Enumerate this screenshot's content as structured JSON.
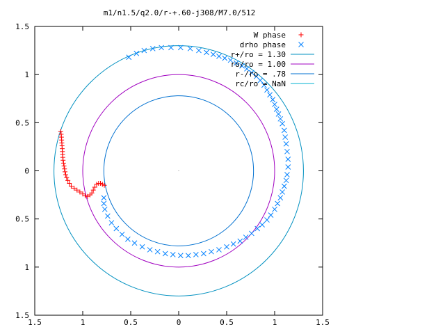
{
  "chart_data": {
    "type": "scatter",
    "title": "m1/n1.5/q2.0/r-+.60-j308/M7.0/512",
    "xlabel": "",
    "ylabel": "",
    "xlim": [
      -1.5,
      1.5
    ],
    "ylim": [
      -1.5,
      1.5
    ],
    "x_ticks": [
      "1.5",
      "1",
      "0.5",
      "0",
      "0.5",
      "1",
      "1.5"
    ],
    "y_ticks": [
      "1.5",
      "1",
      "0.5",
      "0",
      "0.5",
      "1",
      "1.5"
    ],
    "grid": false,
    "legend_position": "top-right",
    "center_mark": [
      0,
      0
    ],
    "series": [
      {
        "name": "W phase",
        "kind": "points",
        "marker": "+",
        "color": "#ff0000",
        "points": [
          [
            -1.23,
            0.41
          ],
          [
            -1.225,
            0.38
          ],
          [
            -1.222,
            0.35
          ],
          [
            -1.22,
            0.32
          ],
          [
            -1.218,
            0.29
          ],
          [
            -1.216,
            0.26
          ],
          [
            -1.214,
            0.23
          ],
          [
            -1.212,
            0.2
          ],
          [
            -1.21,
            0.17
          ],
          [
            -1.208,
            0.14
          ],
          [
            -1.205,
            0.11
          ],
          [
            -1.2,
            0.08
          ],
          [
            -1.195,
            0.05
          ],
          [
            -1.19,
            0.02
          ],
          [
            -1.185,
            -0.01
          ],
          [
            -1.178,
            -0.04
          ],
          [
            -1.168,
            -0.07
          ],
          [
            -1.155,
            -0.1
          ],
          [
            -1.14,
            -0.13
          ],
          [
            -1.12,
            -0.16
          ],
          [
            -1.09,
            -0.18
          ],
          [
            -1.06,
            -0.2
          ],
          [
            -1.03,
            -0.22
          ],
          [
            -1.0,
            -0.24
          ],
          [
            -0.975,
            -0.26
          ],
          [
            -0.95,
            -0.265
          ],
          [
            -0.925,
            -0.25
          ],
          [
            -0.905,
            -0.23
          ],
          [
            -0.89,
            -0.2
          ],
          [
            -0.875,
            -0.17
          ],
          [
            -0.855,
            -0.14
          ],
          [
            -0.835,
            -0.13
          ],
          [
            -0.815,
            -0.13
          ],
          [
            -0.795,
            -0.14
          ],
          [
            -0.775,
            -0.15
          ]
        ]
      },
      {
        "name": "drho phase",
        "kind": "points",
        "marker": "x",
        "color": "#0080ff",
        "points": [
          [
            -0.52,
            1.18
          ],
          [
            -0.44,
            1.22
          ],
          [
            -0.36,
            1.25
          ],
          [
            -0.27,
            1.27
          ],
          [
            -0.18,
            1.28
          ],
          [
            -0.08,
            1.28
          ],
          [
            0.02,
            1.28
          ],
          [
            0.12,
            1.27
          ],
          [
            0.21,
            1.25
          ],
          [
            0.29,
            1.23
          ],
          [
            0.36,
            1.21
          ],
          [
            0.42,
            1.19
          ],
          [
            0.48,
            1.17
          ],
          [
            0.54,
            1.15
          ],
          [
            0.6,
            1.12
          ],
          [
            0.66,
            1.09
          ],
          [
            0.71,
            1.06
          ],
          [
            0.76,
            1.02
          ],
          [
            0.81,
            0.98
          ],
          [
            0.85,
            0.94
          ],
          [
            0.89,
            0.89
          ],
          [
            0.92,
            0.84
          ],
          [
            0.95,
            0.79
          ],
          [
            0.98,
            0.74
          ],
          [
            1.0,
            0.69
          ],
          [
            1.02,
            0.64
          ],
          [
            1.04,
            0.59
          ],
          [
            1.06,
            0.54
          ],
          [
            1.08,
            0.49
          ],
          [
            1.1,
            0.42
          ],
          [
            1.11,
            0.35
          ],
          [
            1.12,
            0.28
          ],
          [
            1.13,
            0.2
          ],
          [
            1.14,
            0.12
          ],
          [
            1.14,
            0.04
          ],
          [
            1.13,
            -0.04
          ],
          [
            1.12,
            -0.1
          ],
          [
            1.1,
            -0.16
          ],
          [
            1.08,
            -0.22
          ],
          [
            1.06,
            -0.28
          ],
          [
            1.03,
            -0.34
          ],
          [
            1.0,
            -0.4
          ],
          [
            0.96,
            -0.46
          ],
          [
            0.92,
            -0.51
          ],
          [
            0.87,
            -0.56
          ],
          [
            0.82,
            -0.6
          ],
          [
            0.76,
            -0.65
          ],
          [
            0.7,
            -0.69
          ],
          [
            0.64,
            -0.73
          ],
          [
            0.57,
            -0.76
          ],
          [
            0.5,
            -0.79
          ],
          [
            0.42,
            -0.82
          ],
          [
            0.34,
            -0.84
          ],
          [
            0.26,
            -0.86
          ],
          [
            0.18,
            -0.87
          ],
          [
            0.1,
            -0.88
          ],
          [
            0.02,
            -0.88
          ],
          [
            -0.06,
            -0.87
          ],
          [
            -0.14,
            -0.86
          ],
          [
            -0.22,
            -0.84
          ],
          [
            -0.3,
            -0.82
          ],
          [
            -0.38,
            -0.79
          ],
          [
            -0.46,
            -0.75
          ],
          [
            -0.53,
            -0.71
          ],
          [
            -0.59,
            -0.66
          ],
          [
            -0.65,
            -0.6
          ],
          [
            -0.7,
            -0.54
          ],
          [
            -0.74,
            -0.47
          ],
          [
            -0.77,
            -0.4
          ],
          [
            -0.78,
            -0.34
          ],
          [
            -0.78,
            -0.28
          ]
        ]
      },
      {
        "name": "r+/ro = 1.30",
        "kind": "circle",
        "radius": 1.3,
        "color": "#0090c0"
      },
      {
        "name": "ro/ro = 1.00",
        "kind": "circle",
        "radius": 1.0,
        "color": "#a000c0"
      },
      {
        "name": "r-/ro = .78",
        "kind": "circle",
        "radius": 0.78,
        "color": "#0070d0"
      },
      {
        "name": "rc/ro = NaN",
        "kind": "circle",
        "radius": null,
        "color": "#00b0d0"
      }
    ]
  }
}
